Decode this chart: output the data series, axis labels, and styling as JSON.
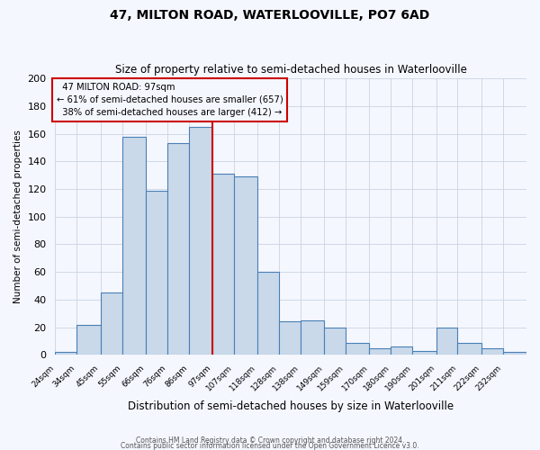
{
  "title": "47, MILTON ROAD, WATERLOOVILLE, PO7 6AD",
  "subtitle": "Size of property relative to semi-detached houses in Waterlooville",
  "xlabel": "Distribution of semi-detached houses by size in Waterlooville",
  "ylabel": "Number of semi-detached properties",
  "bin_labels": [
    "24sqm",
    "34sqm",
    "45sqm",
    "55sqm",
    "66sqm",
    "76sqm",
    "86sqm",
    "97sqm",
    "107sqm",
    "118sqm",
    "128sqm",
    "138sqm",
    "149sqm",
    "159sqm",
    "170sqm",
    "180sqm",
    "190sqm",
    "201sqm",
    "211sqm",
    "222sqm",
    "232sqm"
  ],
  "bin_edges": [
    24,
    34,
    45,
    55,
    66,
    76,
    86,
    97,
    107,
    118,
    128,
    138,
    149,
    159,
    170,
    180,
    190,
    201,
    211,
    222,
    232,
    243
  ],
  "counts": [
    2,
    22,
    45,
    158,
    119,
    153,
    165,
    131,
    129,
    60,
    24,
    25,
    20,
    9,
    5,
    6,
    3,
    20,
    9,
    5,
    2
  ],
  "subject_value": 97,
  "subject_label": "47 MILTON ROAD: 97sqm",
  "pct_smaller": 61,
  "pct_smaller_count": 657,
  "pct_larger": 38,
  "pct_larger_count": 412,
  "bar_facecolor": "#c9d9ea",
  "bar_edgecolor": "#4a7fb5",
  "vline_color": "#cc0000",
  "annotation_box_edgecolor": "#cc0000",
  "grid_color": "#c8d4e0",
  "background_color": "#f5f7ff",
  "ylim": [
    0,
    200
  ],
  "yticks": [
    0,
    20,
    40,
    60,
    80,
    100,
    120,
    140,
    160,
    180,
    200
  ],
  "footer_line1": "Contains HM Land Registry data © Crown copyright and database right 2024.",
  "footer_line2": "Contains public sector information licensed under the Open Government Licence v3.0."
}
